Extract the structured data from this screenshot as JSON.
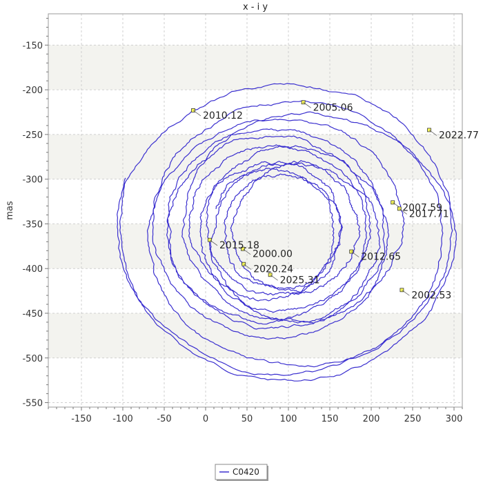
{
  "chart_data": {
    "type": "line",
    "title": "x - i y",
    "xlabel": "",
    "ylabel": "mas",
    "xlim": [
      -190,
      310
    ],
    "ylim": [
      -555,
      -115
    ],
    "x_ticks": [
      -150,
      -100,
      -50,
      0,
      50,
      100,
      150,
      200,
      250,
      300
    ],
    "y_ticks": [
      -550,
      -500,
      -450,
      -400,
      -350,
      -300,
      -250,
      -200,
      -150
    ],
    "grid": true,
    "alternating_bands": true,
    "legend_position": "bottom-center",
    "series": [
      {
        "name": "C0420",
        "color": "#3a2fcf",
        "spiral": {
          "center_start": [
            115,
            -360
          ],
          "center_end": [
            75,
            -355
          ],
          "radius_max_x": 240,
          "radius_max_y": 190,
          "radius_min": 55,
          "turns": 13,
          "start_phase_deg": 160
        }
      }
    ],
    "annotations": [
      {
        "label": "2000.00",
        "x": 45,
        "y": -378
      },
      {
        "label": "2002.53",
        "x": 237,
        "y": -424
      },
      {
        "label": "2005.06",
        "x": 118,
        "y": -214
      },
      {
        "label": "2007.59",
        "x": 226,
        "y": -326
      },
      {
        "label": "2010.12",
        "x": -15,
        "y": -223
      },
      {
        "label": "2012.65",
        "x": 176,
        "y": -381
      },
      {
        "label": "2015.18",
        "x": 5,
        "y": -368
      },
      {
        "label": "2017.71",
        "x": 234,
        "y": -333
      },
      {
        "label": "2020.24",
        "x": 46,
        "y": -395
      },
      {
        "label": "2022.77",
        "x": 270,
        "y": -245
      },
      {
        "label": "2025.31",
        "x": 78,
        "y": -407
      }
    ]
  }
}
